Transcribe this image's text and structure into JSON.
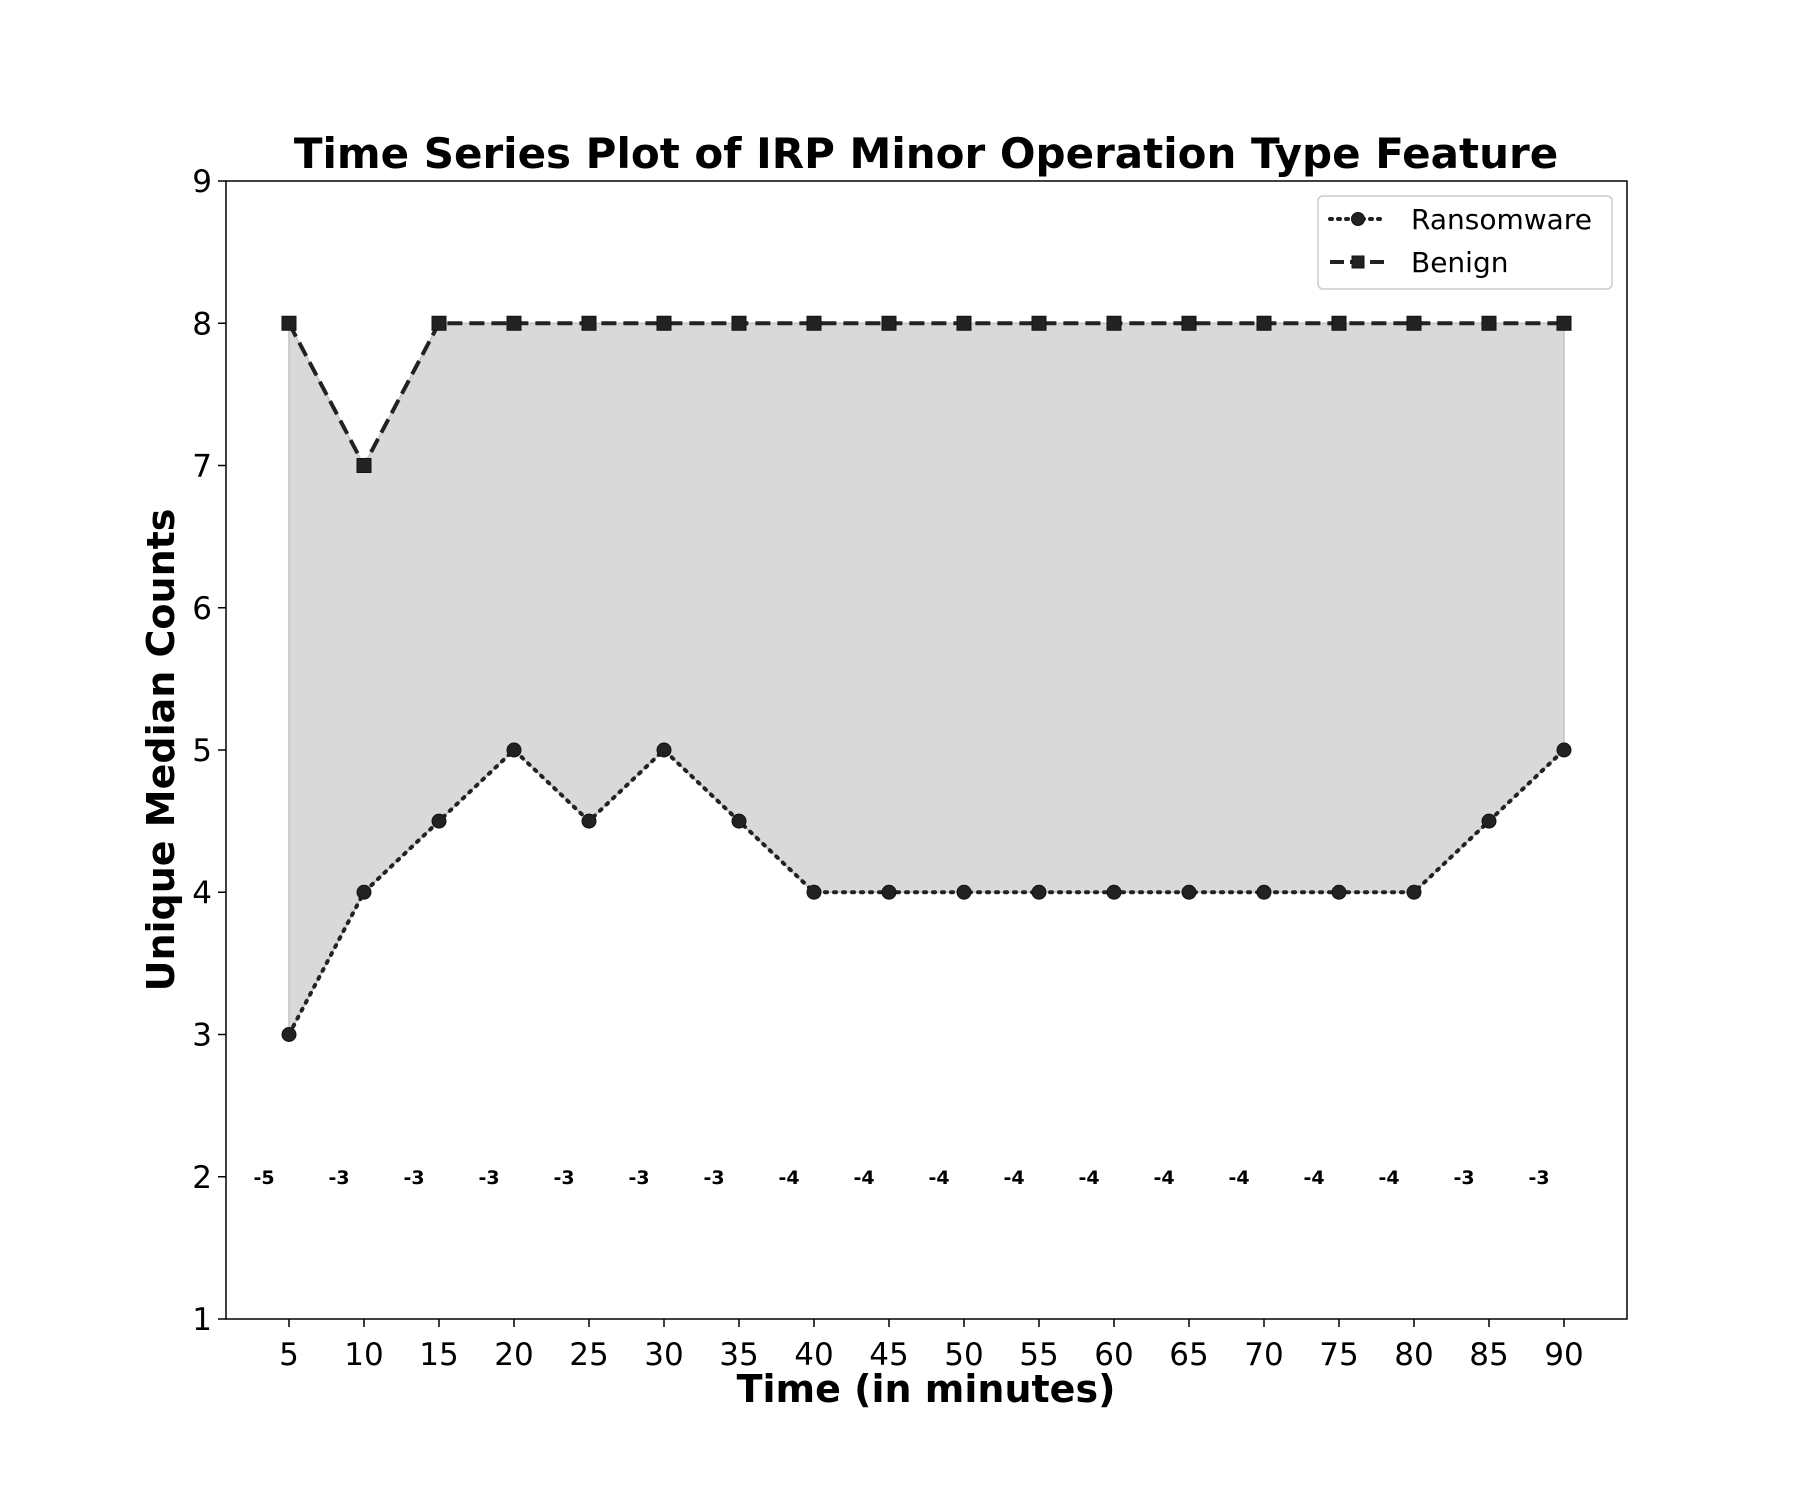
{
  "chart_data": {
    "type": "line",
    "title": "Time Series Plot of IRP Minor Operation Type Feature",
    "xlabel": "Time (in minutes)",
    "ylabel": "Unique Median Counts",
    "x": [
      5,
      10,
      15,
      20,
      25,
      30,
      35,
      40,
      45,
      50,
      55,
      60,
      65,
      70,
      75,
      80,
      85,
      90
    ],
    "xlim": [
      0.8,
      94.2
    ],
    "ylim": [
      1,
      9
    ],
    "yticks": [
      1,
      2,
      3,
      4,
      5,
      6,
      7,
      8,
      9
    ],
    "series": [
      {
        "name": "Ransomware",
        "line_style": "dotted",
        "marker": "circle",
        "color": "#222222",
        "values": [
          3,
          4,
          4.5,
          5,
          4.5,
          5,
          4.5,
          4,
          4,
          4,
          4,
          4,
          4,
          4,
          4,
          4,
          4.5,
          5
        ]
      },
      {
        "name": "Benign",
        "line_style": "dashed",
        "marker": "square",
        "color": "#222222",
        "values": [
          8,
          7,
          8,
          8,
          8,
          8,
          8,
          8,
          8,
          8,
          8,
          8,
          8,
          8,
          8,
          8,
          8,
          8
        ]
      }
    ],
    "fill_between": {
      "series": [
        "Ransomware",
        "Benign"
      ],
      "color": "#d9d9d9"
    },
    "difference_annotations": {
      "y": 2,
      "labels": [
        "-5",
        "-3",
        "-3",
        "-3",
        "-3",
        "-3",
        "-3",
        "-4",
        "-4",
        "-4",
        "-4",
        "-4",
        "-4",
        "-4",
        "-4",
        "-4",
        "-3",
        "-3"
      ]
    },
    "legend_position": "top-right",
    "grid": false
  }
}
